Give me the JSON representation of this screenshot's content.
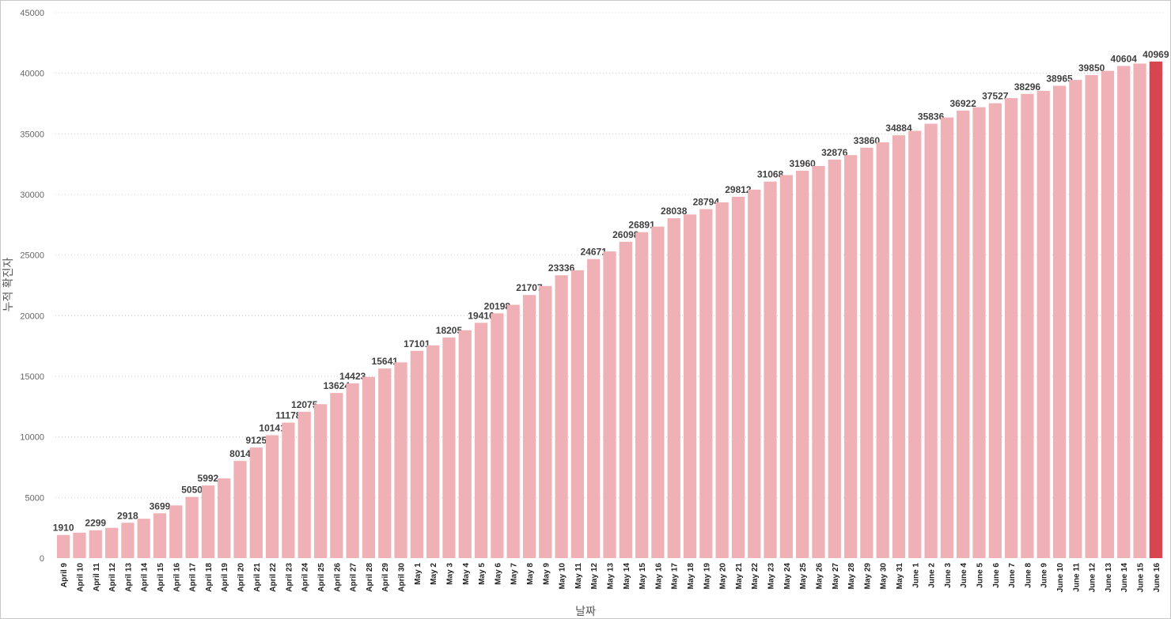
{
  "chart_data": {
    "type": "bar",
    "xlabel": "날짜",
    "ylabel": "누적 확진자",
    "ylim": [
      0,
      45000
    ],
    "y_ticks": [
      0,
      5000,
      10000,
      15000,
      20000,
      25000,
      30000,
      35000,
      40000,
      45000
    ],
    "grid": true,
    "highlight_color": "#D64550",
    "bar_color": "#F0B1B6",
    "categories": [
      "April 9",
      "April 10",
      "April 11",
      "April 12",
      "April 13",
      "April 14",
      "April 15",
      "April 16",
      "April 17",
      "April 18",
      "April 19",
      "April 20",
      "April 21",
      "April 22",
      "April 23",
      "April 24",
      "April 25",
      "April 26",
      "April 27",
      "April 28",
      "April 29",
      "April 30",
      "May 1",
      "May 2",
      "May 3",
      "May 4",
      "May 5",
      "May 6",
      "May 7",
      "May 8",
      "May 9",
      "May 10",
      "May 11",
      "May 12",
      "May 13",
      "May 14",
      "May 15",
      "May 16",
      "May 17",
      "May 18",
      "May 19",
      "May 20",
      "May 21",
      "May 22",
      "May 23",
      "May 24",
      "May 25",
      "May 26",
      "May 27",
      "May 28",
      "May 29",
      "May 30",
      "May 31",
      "June 1",
      "June 2",
      "June 3",
      "June 4",
      "June 5",
      "June 6",
      "June 7",
      "June 8",
      "June 9",
      "June 10",
      "June 11",
      "June 12",
      "June 13",
      "June 14",
      "June 15",
      "June 16"
    ],
    "values": [
      1910,
      2100,
      2299,
      2500,
      2918,
      3250,
      3699,
      4350,
      5050,
      5992,
      6580,
      8014,
      9125,
      10141,
      11178,
      12075,
      12700,
      13624,
      14423,
      14950,
      15641,
      16150,
      17101,
      17550,
      18205,
      18800,
      19410,
      20198,
      20900,
      21707,
      22450,
      23336,
      23750,
      24671,
      25300,
      26098,
      26891,
      27350,
      28038,
      28350,
      28794,
      29350,
      29812,
      30400,
      31068,
      31600,
      31960,
      32350,
      32876,
      33250,
      33860,
      34300,
      34884,
      35250,
      35836,
      36350,
      36922,
      37200,
      37527,
      37950,
      38296,
      38550,
      38965,
      39450,
      39850,
      40200,
      40604,
      40800,
      40969
    ],
    "data_labels": [
      {
        "category": "April 9",
        "text": "1910"
      },
      {
        "category": "April 11",
        "text": "2299"
      },
      {
        "category": "April 13",
        "text": "2918"
      },
      {
        "category": "April 15",
        "text": "3699"
      },
      {
        "category": "April 17",
        "text": "5050"
      },
      {
        "category": "April 18",
        "text": "5992"
      },
      {
        "category": "April 20",
        "text": "8014"
      },
      {
        "category": "April 21",
        "text": "9125"
      },
      {
        "category": "April 22",
        "text": "10141"
      },
      {
        "category": "April 23",
        "text": "11178"
      },
      {
        "category": "April 24",
        "text": "12075"
      },
      {
        "category": "April 26",
        "text": "13624"
      },
      {
        "category": "April 27",
        "text": "14423"
      },
      {
        "category": "April 29",
        "text": "15641"
      },
      {
        "category": "May 1",
        "text": "17101"
      },
      {
        "category": "May 3",
        "text": "18205"
      },
      {
        "category": "May 5",
        "text": "19410"
      },
      {
        "category": "May 6",
        "text": "20198"
      },
      {
        "category": "May 8",
        "text": "21707"
      },
      {
        "category": "May 10",
        "text": "23336"
      },
      {
        "category": "May 12",
        "text": "24671"
      },
      {
        "category": "May 14",
        "text": "26098"
      },
      {
        "category": "May 15",
        "text": "26891"
      },
      {
        "category": "May 17",
        "text": "28038"
      },
      {
        "category": "May 19",
        "text": "28794"
      },
      {
        "category": "May 21",
        "text": "29812"
      },
      {
        "category": "May 23",
        "text": "31068"
      },
      {
        "category": "May 25",
        "text": "31960"
      },
      {
        "category": "May 27",
        "text": "32876"
      },
      {
        "category": "May 29",
        "text": "33860"
      },
      {
        "category": "May 31",
        "text": "34884"
      },
      {
        "category": "June 2",
        "text": "35836"
      },
      {
        "category": "June 4",
        "text": "36922"
      },
      {
        "category": "June 6",
        "text": "37527"
      },
      {
        "category": "June 8",
        "text": "38296"
      },
      {
        "category": "June 10",
        "text": "38965"
      },
      {
        "category": "June 12",
        "text": "39850"
      },
      {
        "category": "June 14",
        "text": "40604"
      },
      {
        "category": "June 16",
        "text": "40969"
      }
    ],
    "highlighted_category": "June 16"
  }
}
